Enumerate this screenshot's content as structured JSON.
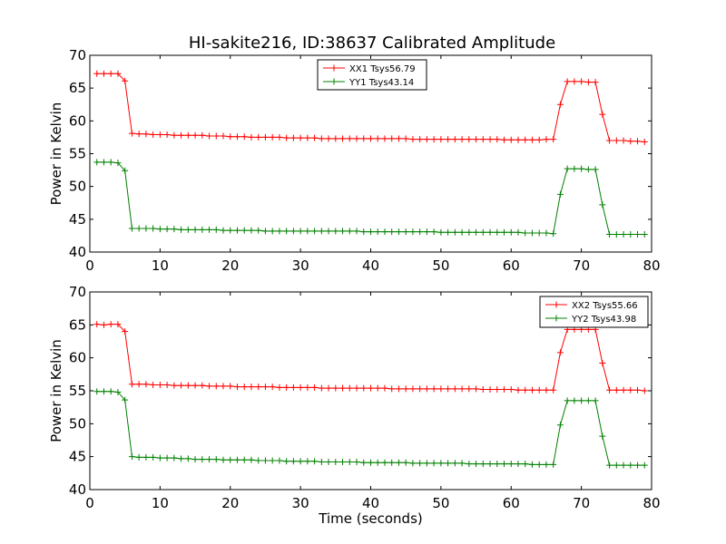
{
  "title": "HI-sakite216, ID:38637 Calibrated Amplitude",
  "xlabel": "Time (seconds)",
  "colors": {
    "xx": "#ff0000",
    "yy": "#008000",
    "axes": "#000000",
    "background": "#ffffff"
  },
  "chart_data": [
    {
      "type": "line",
      "title": "HI-sakite216, ID:38637 Calibrated Amplitude",
      "xlabel": "",
      "ylabel": "Power in Kelvin",
      "xlim": [
        0,
        80
      ],
      "ylim": [
        40,
        70
      ],
      "xticks": [
        0,
        10,
        20,
        30,
        40,
        50,
        60,
        70,
        80
      ],
      "yticks": [
        40,
        45,
        50,
        55,
        60,
        65,
        70
      ],
      "grid": false,
      "legend": "top-center",
      "marker": "+",
      "x": [
        1,
        2,
        3,
        4,
        5,
        6,
        7,
        8,
        9,
        10,
        11,
        12,
        13,
        14,
        15,
        16,
        17,
        18,
        19,
        20,
        21,
        22,
        23,
        24,
        25,
        26,
        27,
        28,
        29,
        30,
        31,
        32,
        33,
        34,
        35,
        36,
        37,
        38,
        39,
        40,
        41,
        42,
        43,
        44,
        45,
        46,
        47,
        48,
        49,
        50,
        51,
        52,
        53,
        54,
        55,
        56,
        57,
        58,
        59,
        60,
        61,
        62,
        63,
        64,
        65,
        66,
        67,
        68,
        69,
        70,
        71,
        72,
        73,
        74,
        75,
        76,
        77,
        78,
        79
      ],
      "series": [
        {
          "name": "XX1 Tsys56.79",
          "color": "#ff0000",
          "values": [
            67.2,
            67.2,
            67.2,
            67.2,
            66.1,
            58.1,
            58.0,
            58.0,
            57.9,
            57.9,
            57.9,
            57.8,
            57.8,
            57.8,
            57.8,
            57.8,
            57.7,
            57.7,
            57.7,
            57.6,
            57.6,
            57.6,
            57.5,
            57.5,
            57.5,
            57.5,
            57.5,
            57.4,
            57.4,
            57.4,
            57.4,
            57.4,
            57.3,
            57.3,
            57.3,
            57.3,
            57.3,
            57.3,
            57.3,
            57.3,
            57.3,
            57.3,
            57.3,
            57.3,
            57.3,
            57.2,
            57.2,
            57.2,
            57.2,
            57.2,
            57.2,
            57.2,
            57.2,
            57.2,
            57.2,
            57.2,
            57.2,
            57.2,
            57.1,
            57.1,
            57.1,
            57.1,
            57.1,
            57.1,
            57.2,
            57.2,
            62.5,
            66.0,
            66.0,
            66.0,
            65.9,
            65.9,
            61.0,
            57.0,
            57.0,
            57.0,
            56.9,
            56.9,
            56.8
          ]
        },
        {
          "name": "YY1 Tsys43.14",
          "color": "#008000",
          "values": [
            53.7,
            53.7,
            53.7,
            53.6,
            52.4,
            43.6,
            43.6,
            43.6,
            43.6,
            43.5,
            43.5,
            43.5,
            43.4,
            43.4,
            43.4,
            43.4,
            43.4,
            43.4,
            43.3,
            43.3,
            43.3,
            43.3,
            43.3,
            43.3,
            43.2,
            43.2,
            43.2,
            43.2,
            43.2,
            43.2,
            43.2,
            43.2,
            43.2,
            43.2,
            43.2,
            43.2,
            43.2,
            43.2,
            43.1,
            43.1,
            43.1,
            43.1,
            43.1,
            43.1,
            43.1,
            43.1,
            43.1,
            43.1,
            43.1,
            43.0,
            43.0,
            43.0,
            43.0,
            43.0,
            43.0,
            43.0,
            43.0,
            43.0,
            43.0,
            43.0,
            43.0,
            42.9,
            42.9,
            42.9,
            42.9,
            42.8,
            48.8,
            52.7,
            52.7,
            52.7,
            52.6,
            52.6,
            47.2,
            42.7,
            42.7,
            42.7,
            42.7,
            42.7,
            42.7
          ]
        }
      ]
    },
    {
      "type": "line",
      "title": "",
      "xlabel": "Time (seconds)",
      "ylabel": "Power in Kelvin",
      "xlim": [
        0,
        80
      ],
      "ylim": [
        40,
        70
      ],
      "xticks": [
        0,
        10,
        20,
        30,
        40,
        50,
        60,
        70,
        80
      ],
      "yticks": [
        40,
        45,
        50,
        55,
        60,
        65,
        70
      ],
      "grid": false,
      "legend": "top-right",
      "marker": "+",
      "x": [
        1,
        2,
        3,
        4,
        5,
        6,
        7,
        8,
        9,
        10,
        11,
        12,
        13,
        14,
        15,
        16,
        17,
        18,
        19,
        20,
        21,
        22,
        23,
        24,
        25,
        26,
        27,
        28,
        29,
        30,
        31,
        32,
        33,
        34,
        35,
        36,
        37,
        38,
        39,
        40,
        41,
        42,
        43,
        44,
        45,
        46,
        47,
        48,
        49,
        50,
        51,
        52,
        53,
        54,
        55,
        56,
        57,
        58,
        59,
        60,
        61,
        62,
        63,
        64,
        65,
        66,
        67,
        68,
        69,
        70,
        71,
        72,
        73,
        74,
        75,
        76,
        77,
        78,
        79
      ],
      "series": [
        {
          "name": "XX2 Tsys55.66",
          "color": "#ff0000",
          "values": [
            65.1,
            65.0,
            65.1,
            65.1,
            64.0,
            56.0,
            56.0,
            56.0,
            55.9,
            55.9,
            55.9,
            55.8,
            55.8,
            55.8,
            55.8,
            55.8,
            55.7,
            55.7,
            55.7,
            55.7,
            55.6,
            55.6,
            55.6,
            55.6,
            55.6,
            55.6,
            55.5,
            55.5,
            55.5,
            55.5,
            55.5,
            55.5,
            55.4,
            55.4,
            55.4,
            55.4,
            55.4,
            55.4,
            55.4,
            55.4,
            55.4,
            55.4,
            55.3,
            55.3,
            55.3,
            55.3,
            55.3,
            55.3,
            55.3,
            55.3,
            55.3,
            55.3,
            55.3,
            55.3,
            55.3,
            55.2,
            55.2,
            55.2,
            55.2,
            55.2,
            55.1,
            55.1,
            55.1,
            55.1,
            55.1,
            55.1,
            60.8,
            64.3,
            64.3,
            64.3,
            64.3,
            64.3,
            59.2,
            55.1,
            55.1,
            55.1,
            55.1,
            55.1,
            55.0
          ]
        },
        {
          "name": "YY2 Tsys43.98",
          "color": "#008000",
          "values": [
            54.9,
            54.9,
            54.9,
            54.8,
            53.6,
            45.0,
            44.9,
            44.9,
            44.9,
            44.8,
            44.8,
            44.8,
            44.7,
            44.7,
            44.6,
            44.6,
            44.6,
            44.6,
            44.5,
            44.5,
            44.5,
            44.5,
            44.5,
            44.4,
            44.4,
            44.4,
            44.4,
            44.3,
            44.3,
            44.3,
            44.3,
            44.3,
            44.2,
            44.2,
            44.2,
            44.2,
            44.2,
            44.2,
            44.1,
            44.1,
            44.1,
            44.1,
            44.1,
            44.1,
            44.1,
            44.0,
            44.0,
            44.0,
            44.0,
            44.0,
            44.0,
            44.0,
            44.0,
            43.9,
            43.9,
            43.9,
            43.9,
            43.9,
            43.9,
            43.9,
            43.9,
            43.9,
            43.8,
            43.8,
            43.8,
            43.8,
            49.8,
            53.5,
            53.5,
            53.5,
            53.5,
            53.5,
            48.1,
            43.7,
            43.7,
            43.7,
            43.7,
            43.7,
            43.7
          ]
        }
      ]
    }
  ]
}
